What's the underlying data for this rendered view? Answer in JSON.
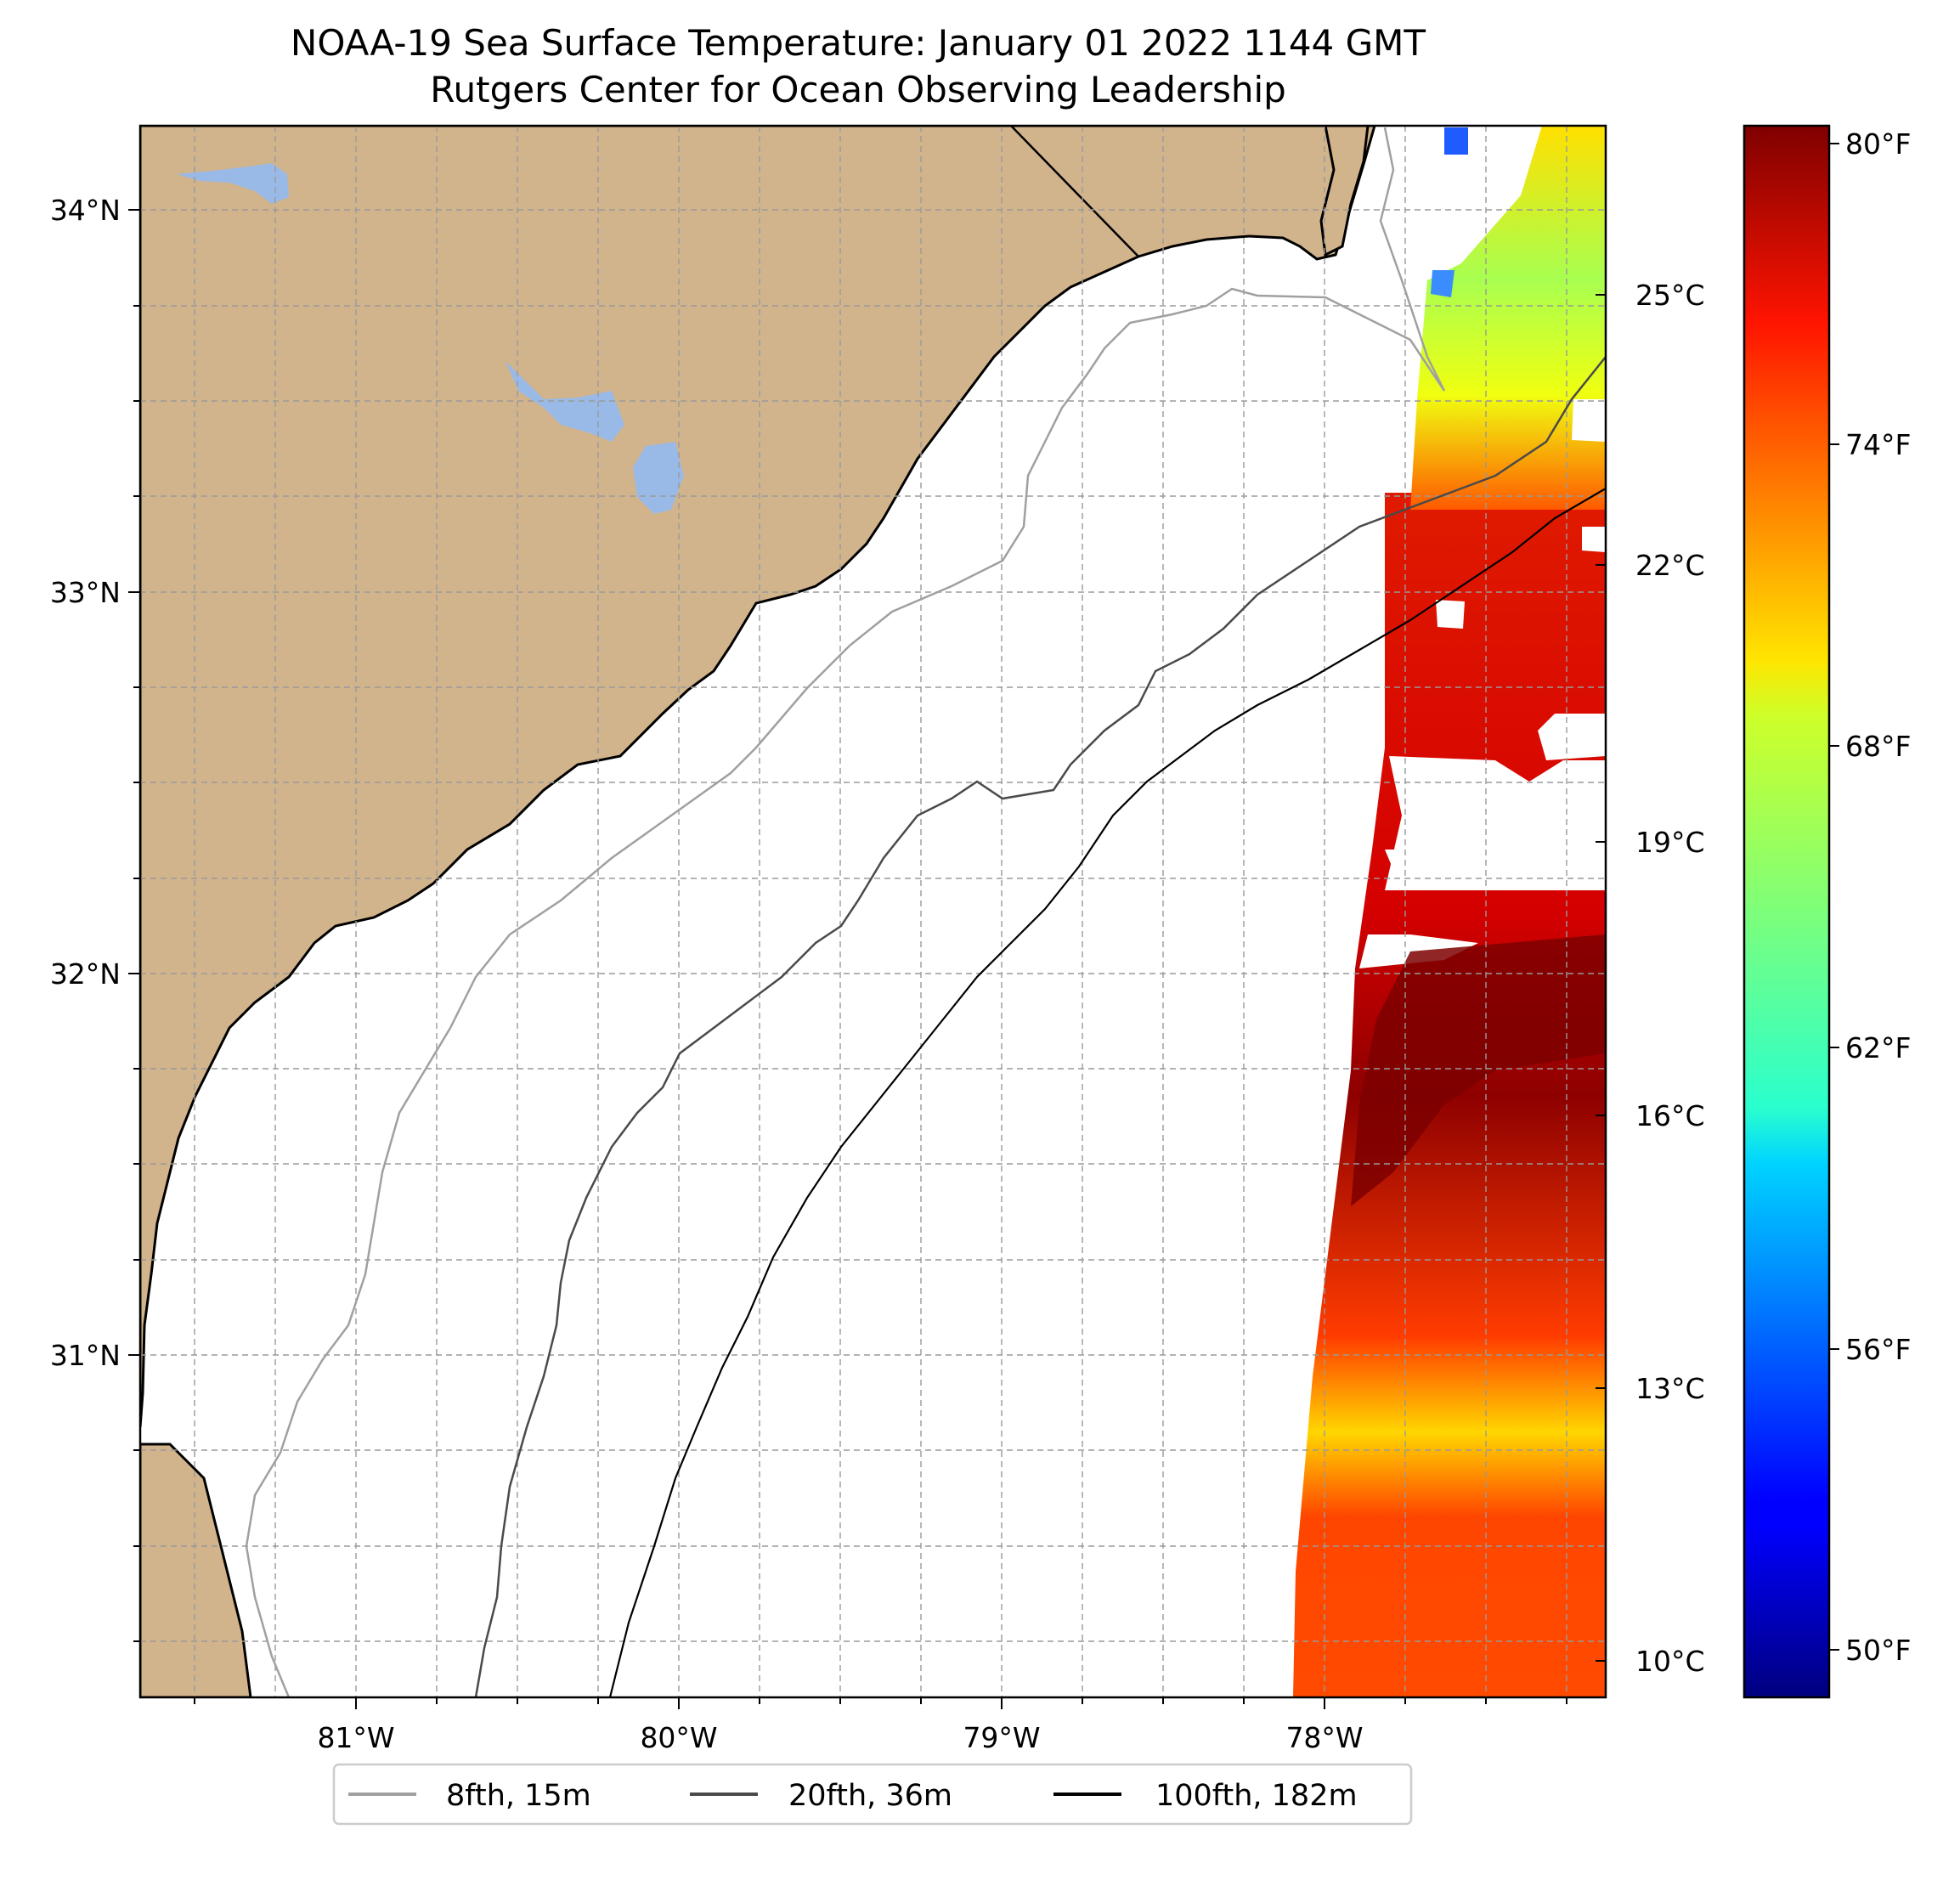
{
  "title": {
    "line1": "NOAA-19 Sea Surface Temperature: January 01 2022 1144 GMT",
    "line2": "Rutgers Center for Ocean Observing Leadership"
  },
  "map": {
    "lon_range": [
      -81.67,
      -77.13
    ],
    "lat_range": [
      30.07,
      34.22
    ],
    "lon_ticks": [
      {
        "value": -81,
        "label": "81°W"
      },
      {
        "value": -80,
        "label": "80°W"
      },
      {
        "value": -79,
        "label": "79°W"
      },
      {
        "value": -78,
        "label": "78°W"
      }
    ],
    "lat_ticks": [
      {
        "value": 34,
        "label": "34°N"
      },
      {
        "value": 33,
        "label": "33°N"
      },
      {
        "value": 32,
        "label": "32°N"
      },
      {
        "value": 31,
        "label": "31°N"
      }
    ],
    "gridlines": true,
    "land_color": "#d2b48c",
    "water_color": "#99b9e6"
  },
  "colorbar": {
    "colormap": "jet",
    "range_celsius": [
      9.5,
      27.2
    ],
    "celsius_ticks": [
      {
        "value": 10,
        "label": "10°C"
      },
      {
        "value": 13,
        "label": "13°C"
      },
      {
        "value": 16,
        "label": "16°C"
      },
      {
        "value": 19,
        "label": "19°C"
      },
      {
        "value": 22,
        "label": "22°C"
      },
      {
        "value": 25,
        "label": "25°C"
      }
    ],
    "fahrenheit_ticks": [
      {
        "value": 50,
        "label": "50°F"
      },
      {
        "value": 56,
        "label": "56°F"
      },
      {
        "value": 62,
        "label": "62°F"
      },
      {
        "value": 68,
        "label": "68°F"
      },
      {
        "value": 74,
        "label": "74°F"
      },
      {
        "value": 80,
        "label": "80°F"
      }
    ]
  },
  "legend": {
    "items": [
      {
        "label": "8fth, 15m",
        "color": "#a0a0a0"
      },
      {
        "label": "20fth, 36m",
        "color": "#4a4a4a"
      },
      {
        "label": "100fth, 182m",
        "color": "#000000"
      }
    ]
  }
}
